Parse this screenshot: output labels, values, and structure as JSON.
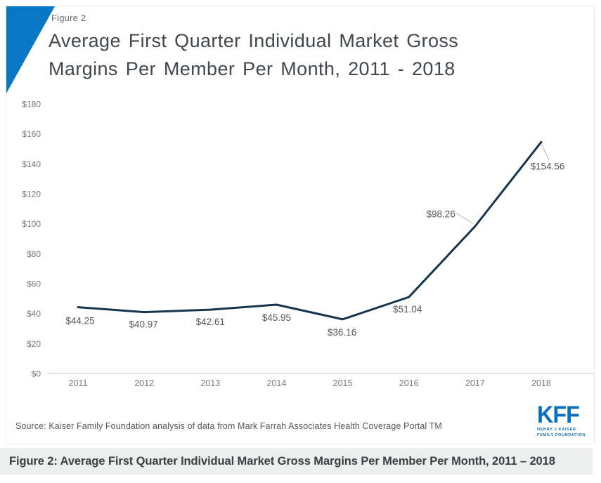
{
  "page": {
    "figure_label": "Figure 2",
    "title_line1": "Average First Quarter Individual Market Gross",
    "title_line2": "Margins Per Member Per Month, 2011 - 2018",
    "source": "Source: Kaiser Family Foundation analysis of data from Mark Farrah Associates Health Coverage Portal TM",
    "caption": "Figure 2: Average First Quarter Individual Market Gross Margins Per Member Per Month, 2011 – 2018"
  },
  "logo": {
    "text": "KFF",
    "sub_line1": "HENRY J KAISER",
    "sub_line2": "FAMILY FOUNDATION"
  },
  "colors": {
    "accent_blue": "#0878c4",
    "series_line": "#16344e",
    "logo_blue": "#0a6ebd",
    "axis_line": "#d8dada",
    "tick_text": "#76797c",
    "data_label_text": "#55585a",
    "caption_bg": "#edefef"
  },
  "chart_data": {
    "type": "line",
    "title": "Average First Quarter Individual Market Gross Margins Per Member Per Month, 2011 - 2018",
    "xlabel": "",
    "ylabel": "",
    "categories": [
      "2011",
      "2012",
      "2013",
      "2014",
      "2015",
      "2016",
      "2017",
      "2018"
    ],
    "values": [
      44.25,
      40.97,
      42.61,
      45.95,
      36.16,
      51.04,
      98.26,
      154.56
    ],
    "point_labels": [
      "$44.25",
      "$40.97",
      "$42.61",
      "$45.95",
      "$36.16",
      "$51.04",
      "$98.26",
      "$154.56"
    ],
    "yticks": [
      {
        "label": "$0",
        "value": 0
      },
      {
        "label": "$20",
        "value": 20
      },
      {
        "label": "$40",
        "value": 40
      },
      {
        "label": "$60",
        "value": 60
      },
      {
        "label": "$80",
        "value": 80
      },
      {
        "label": "$100",
        "value": 100
      },
      {
        "label": "$120",
        "value": 120
      },
      {
        "label": "$140",
        "value": 140
      },
      {
        "label": "$160",
        "value": 160
      },
      {
        "label": "$180",
        "value": 180
      }
    ],
    "ylim": [
      0,
      180
    ],
    "grid": false,
    "legend": false,
    "series_color": "#16344e"
  }
}
